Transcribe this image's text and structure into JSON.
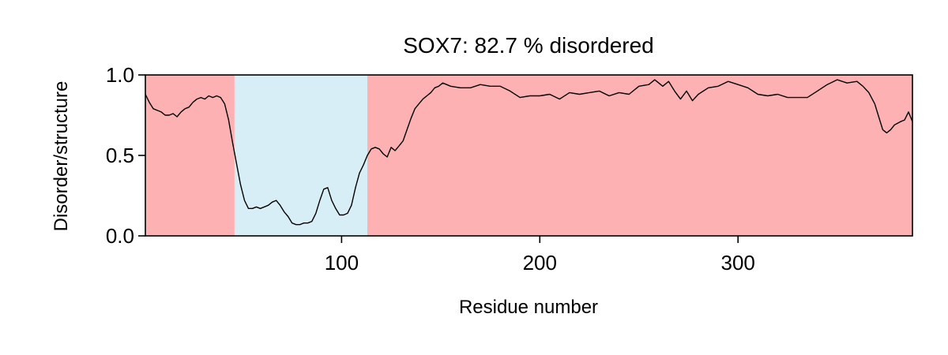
{
  "chart_data": {
    "type": "line",
    "title": "SOX7: 82.7 % disordered",
    "xlabel": "Residue number",
    "ylabel": "Disorder/structure",
    "xlim": [
      1,
      388
    ],
    "ylim": [
      0.0,
      1.0
    ],
    "x_ticks": [
      100,
      200,
      300
    ],
    "x_tick_labels": [
      "100",
      "200",
      "300"
    ],
    "y_ticks": [
      0.0,
      0.5,
      1.0
    ],
    "y_tick_labels": [
      "0.0",
      "0.5",
      "1.0"
    ],
    "grid": false,
    "colors": {
      "disordered_region": "#fdb1b2",
      "structured_region": "#d8eef7",
      "line": "#000000"
    },
    "regions": [
      {
        "type": "disordered",
        "start": 1,
        "end": 46
      },
      {
        "type": "structured",
        "start": 46,
        "end": 113
      },
      {
        "type": "disordered",
        "start": 113,
        "end": 388
      }
    ],
    "series": [
      {
        "points": [
          [
            1,
            0.88
          ],
          [
            3,
            0.83
          ],
          [
            5,
            0.79
          ],
          [
            7,
            0.78
          ],
          [
            9,
            0.77
          ],
          [
            11,
            0.75
          ],
          [
            13,
            0.75
          ],
          [
            15,
            0.76
          ],
          [
            17,
            0.74
          ],
          [
            19,
            0.77
          ],
          [
            21,
            0.79
          ],
          [
            23,
            0.8
          ],
          [
            25,
            0.83
          ],
          [
            27,
            0.85
          ],
          [
            29,
            0.86
          ],
          [
            31,
            0.85
          ],
          [
            33,
            0.87
          ],
          [
            35,
            0.86
          ],
          [
            37,
            0.87
          ],
          [
            39,
            0.86
          ],
          [
            41,
            0.82
          ],
          [
            43,
            0.72
          ],
          [
            45,
            0.58
          ],
          [
            47,
            0.45
          ],
          [
            49,
            0.32
          ],
          [
            51,
            0.22
          ],
          [
            53,
            0.17
          ],
          [
            55,
            0.17
          ],
          [
            57,
            0.18
          ],
          [
            59,
            0.17
          ],
          [
            61,
            0.18
          ],
          [
            63,
            0.19
          ],
          [
            65,
            0.21
          ],
          [
            67,
            0.22
          ],
          [
            69,
            0.19
          ],
          [
            71,
            0.15
          ],
          [
            73,
            0.12
          ],
          [
            75,
            0.08
          ],
          [
            77,
            0.07
          ],
          [
            79,
            0.07
          ],
          [
            81,
            0.08
          ],
          [
            83,
            0.08
          ],
          [
            85,
            0.09
          ],
          [
            87,
            0.14
          ],
          [
            89,
            0.22
          ],
          [
            91,
            0.29
          ],
          [
            93,
            0.3
          ],
          [
            95,
            0.22
          ],
          [
            97,
            0.17
          ],
          [
            99,
            0.13
          ],
          [
            101,
            0.13
          ],
          [
            103,
            0.14
          ],
          [
            105,
            0.19
          ],
          [
            107,
            0.3
          ],
          [
            109,
            0.39
          ],
          [
            111,
            0.44
          ],
          [
            113,
            0.5
          ],
          [
            115,
            0.54
          ],
          [
            117,
            0.55
          ],
          [
            119,
            0.54
          ],
          [
            121,
            0.51
          ],
          [
            123,
            0.49
          ],
          [
            125,
            0.55
          ],
          [
            127,
            0.53
          ],
          [
            129,
            0.56
          ],
          [
            131,
            0.59
          ],
          [
            133,
            0.66
          ],
          [
            135,
            0.73
          ],
          [
            137,
            0.79
          ],
          [
            139,
            0.82
          ],
          [
            141,
            0.85
          ],
          [
            143,
            0.87
          ],
          [
            145,
            0.89
          ],
          [
            147,
            0.92
          ],
          [
            149,
            0.93
          ],
          [
            151,
            0.95
          ],
          [
            153,
            0.94
          ],
          [
            155,
            0.93
          ],
          [
            160,
            0.92
          ],
          [
            165,
            0.92
          ],
          [
            170,
            0.94
          ],
          [
            175,
            0.93
          ],
          [
            180,
            0.93
          ],
          [
            185,
            0.9
          ],
          [
            190,
            0.86
          ],
          [
            195,
            0.87
          ],
          [
            200,
            0.87
          ],
          [
            205,
            0.88
          ],
          [
            210,
            0.85
          ],
          [
            215,
            0.89
          ],
          [
            220,
            0.88
          ],
          [
            225,
            0.89
          ],
          [
            230,
            0.9
          ],
          [
            235,
            0.87
          ],
          [
            240,
            0.89
          ],
          [
            245,
            0.88
          ],
          [
            250,
            0.93
          ],
          [
            255,
            0.94
          ],
          [
            258,
            0.97
          ],
          [
            262,
            0.93
          ],
          [
            265,
            0.96
          ],
          [
            268,
            0.9
          ],
          [
            271,
            0.85
          ],
          [
            274,
            0.9
          ],
          [
            277,
            0.84
          ],
          [
            280,
            0.88
          ],
          [
            285,
            0.92
          ],
          [
            290,
            0.93
          ],
          [
            295,
            0.96
          ],
          [
            300,
            0.94
          ],
          [
            305,
            0.92
          ],
          [
            310,
            0.88
          ],
          [
            315,
            0.87
          ],
          [
            320,
            0.88
          ],
          [
            325,
            0.86
          ],
          [
            330,
            0.86
          ],
          [
            335,
            0.86
          ],
          [
            340,
            0.9
          ],
          [
            345,
            0.94
          ],
          [
            350,
            0.97
          ],
          [
            355,
            0.95
          ],
          [
            360,
            0.96
          ],
          [
            363,
            0.93
          ],
          [
            366,
            0.89
          ],
          [
            369,
            0.82
          ],
          [
            371,
            0.74
          ],
          [
            373,
            0.66
          ],
          [
            375,
            0.64
          ],
          [
            377,
            0.66
          ],
          [
            379,
            0.69
          ],
          [
            382,
            0.71
          ],
          [
            384,
            0.72
          ],
          [
            386,
            0.77
          ],
          [
            388,
            0.71
          ]
        ]
      }
    ]
  }
}
